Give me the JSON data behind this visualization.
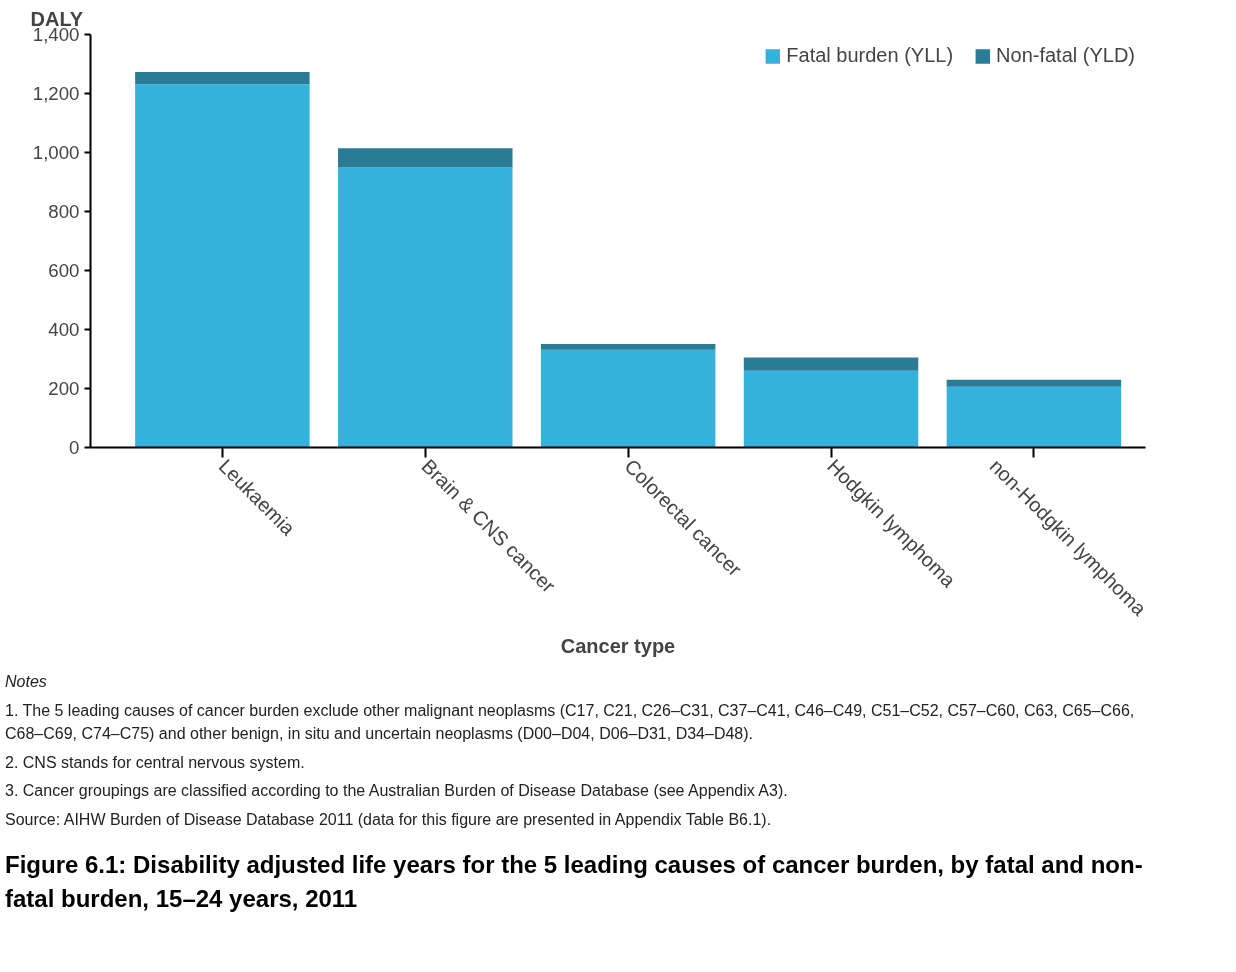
{
  "chart_data": {
    "type": "bar",
    "stacked": true,
    "title": "Figure 6.1: Disability adjusted life years for the 5 leading causes of cancer burden, by fatal and non-fatal burden, 15–24 years, 2011",
    "ylabel": "DALY",
    "xlabel": "Cancer type",
    "categories": [
      "Leukaemia",
      "Brain & CNS cancer",
      "Colorectal cancer",
      "Hodgkin lymphoma",
      "non-Hodgkin lymphoma"
    ],
    "series": [
      {
        "name": "Fatal burden (YLL)",
        "color": "#35b2dc",
        "values": [
          1231,
          949,
          331,
          260,
          206
        ]
      },
      {
        "name": "Non-fatal (YLD)",
        "color": "#2a7b96",
        "values": [
          42,
          65,
          20,
          45,
          24
        ]
      }
    ],
    "ylim": [
      0,
      1400
    ],
    "yticks": [
      0,
      {
        "value": 200,
        "label": "200"
      },
      {
        "value": 400,
        "label": "400"
      },
      {
        "value": 600,
        "label": "600"
      },
      {
        "value": 800,
        "label": "800"
      },
      {
        "value": 1000,
        "label": "1,000"
      },
      {
        "value": 1200,
        "label": "1,200"
      },
      {
        "value": 1400,
        "label": "1,400"
      }
    ],
    "grid": false,
    "legend": "top right",
    "annotations": [
      "Notes",
      "1. The 5 leading causes of cancer burden exclude other malignant neoplasms (C17, C21, C26–C31, C37–C41, C46–C49, C51–C52, C57–C60, C63, C65–C66, C68–C69, C74–C75) and other benign, in situ and uncertain neoplasms (D00–D04, D06–D31, D34–D48).",
      "2. CNS stands for central nervous system.",
      "3. Cancer groupings are classified according to the Australian Burden of Disease Database (see Appendix A3).",
      "Source: AIHW Burden of Disease Database 2011 (data for this figure are presented in Appendix Table B6.1)."
    ]
  }
}
